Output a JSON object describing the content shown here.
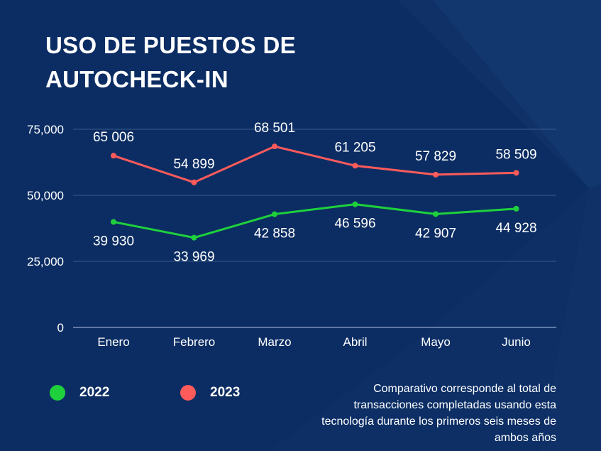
{
  "title": "USO DE PUESTOS DE AUTOCHECK-IN",
  "note": "Comparativo corresponde al total de transacciones completadas usando esta tecnología durante los primeros seis meses de ambos años",
  "colors": {
    "background": "#0c2d63",
    "series_2022": "#1ed13c",
    "series_2023": "#ff5b5b",
    "grid": "#3a5a8e",
    "text": "#ffffff"
  },
  "chart_data": {
    "type": "line",
    "title": "USO DE PUESTOS DE AUTOCHECK-IN",
    "xlabel": "",
    "ylabel": "",
    "categories": [
      "Enero",
      "Febrero",
      "Marzo",
      "Abril",
      "Mayo",
      "Junio"
    ],
    "ylim": [
      0,
      75000
    ],
    "yticks": [
      0,
      25000,
      50000,
      75000
    ],
    "ytick_labels": [
      "0",
      "25,000",
      "50,000",
      "75,000"
    ],
    "grid": true,
    "legend_position": "bottom-left",
    "series": [
      {
        "name": "2022",
        "color": "#1ed13c",
        "values": [
          39930,
          33969,
          42858,
          46596,
          42907,
          44928
        ],
        "labels": [
          "39 930",
          "33 969",
          "42 858",
          "46 596",
          "42 907",
          "44 928"
        ],
        "label_position": "below"
      },
      {
        "name": "2023",
        "color": "#ff5b5b",
        "values": [
          65006,
          54899,
          68501,
          61205,
          57829,
          58509
        ],
        "labels": [
          "65 006",
          "54 899",
          "68 501",
          "61 205",
          "57 829",
          "58 509"
        ],
        "label_position": "above"
      }
    ]
  }
}
